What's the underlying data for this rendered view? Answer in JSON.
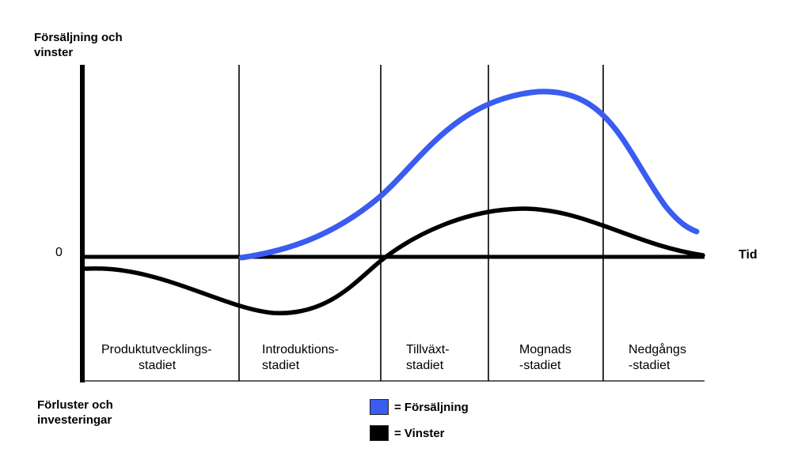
{
  "y_axis": {
    "top_label_line1": "Försäljning och",
    "top_label_line2": "vinster",
    "bottom_label_line1": "Förluster och",
    "bottom_label_line2": "investeringar",
    "zero_label": "0"
  },
  "x_axis": {
    "label": "Tid"
  },
  "stages": [
    {
      "line1": "Produktutvecklings-",
      "line2": "stadiet"
    },
    {
      "line1": "Introduktions-",
      "line2": "stadiet"
    },
    {
      "line1": "Tillväxt-",
      "line2": "stadiet"
    },
    {
      "line1": "Mognads",
      "line2": "-stadiet"
    },
    {
      "line1": "Nedgångs",
      "line2": "-stadiet"
    }
  ],
  "legend": [
    {
      "label": "= Försäljning",
      "color": "#3a5cf0"
    },
    {
      "label": "= Vinster",
      "color": "#000000"
    }
  ],
  "colors": {
    "sales": "#3a5cf0",
    "profit": "#000000",
    "axis": "#000000"
  }
}
